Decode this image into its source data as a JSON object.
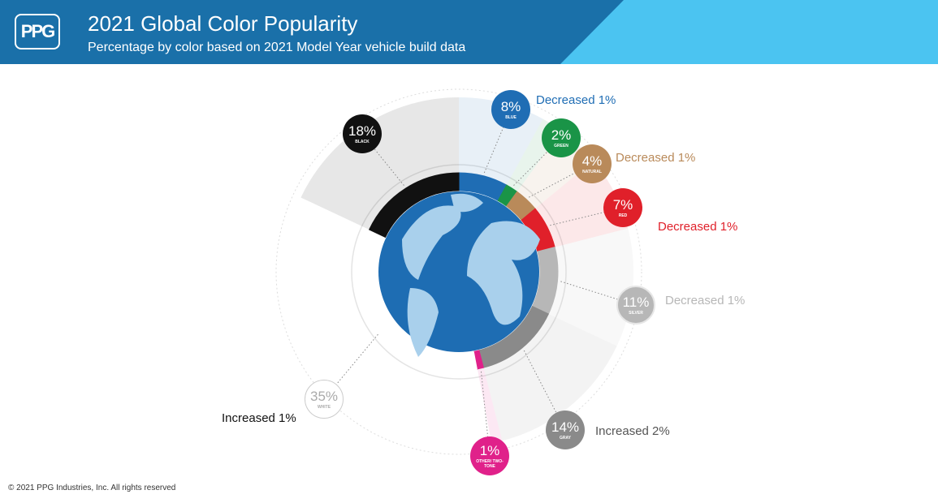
{
  "header": {
    "logo": "PPG",
    "title": "2021 Global Color Popularity",
    "subtitle": "Percentage by color based on 2021 Model Year vehicle build data"
  },
  "chart_data": {
    "type": "pie",
    "categories": [
      "BLUE",
      "GREEN",
      "NATURAL",
      "RED",
      "SILVER",
      "GRAY",
      "OTHER/ TWO-TONE",
      "WHITE",
      "BLACK"
    ],
    "values": [
      8,
      2,
      4,
      7,
      11,
      14,
      1,
      35,
      18
    ],
    "value_labels": [
      "8%",
      "2%",
      "4%",
      "7%",
      "11%",
      "14%",
      "1%",
      "35%",
      "18%"
    ],
    "colors": [
      "#1f6db4",
      "#1a9447",
      "#b98a5a",
      "#e0202a",
      "#b7b7b7",
      "#8a8a8a",
      "#e0218a",
      "#ffffff",
      "#111111"
    ],
    "changes": [
      "Decreased 1%",
      null,
      "Decreased 1%",
      "Decreased 1%",
      "Decreased 1%",
      "Increased 2%",
      null,
      "Increased 1%",
      null
    ]
  },
  "footer": "© 2021 PPG Industries, Inc. All rights reserved"
}
